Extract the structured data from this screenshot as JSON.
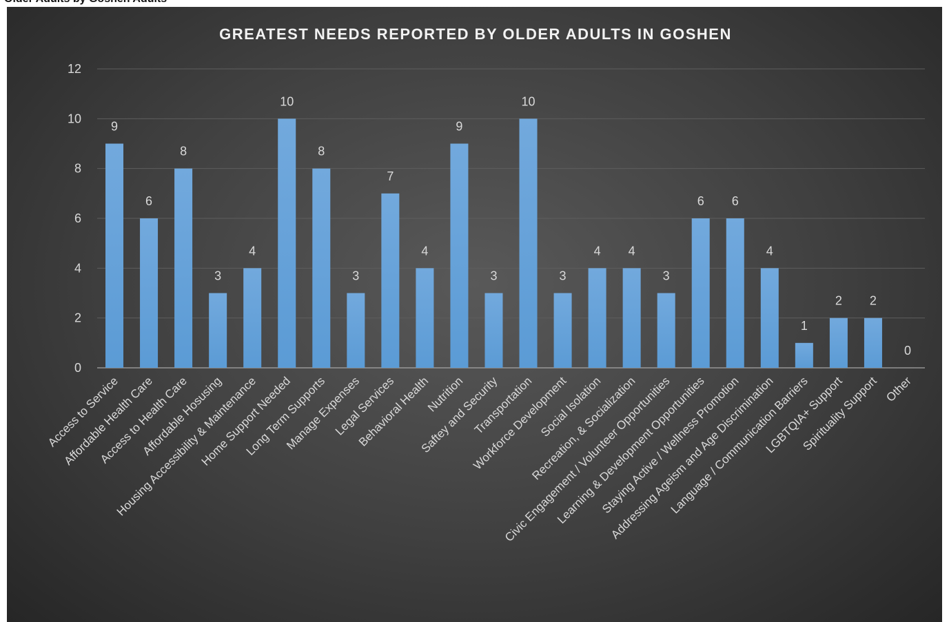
{
  "header_text": "Older Adults by Goshen Adults",
  "chart_data": {
    "type": "bar",
    "title": "GREATEST NEEDS REPORTED BY OLDER ADULTS IN GOSHEN",
    "xlabel": "",
    "ylabel": "",
    "ylim": [
      0,
      12
    ],
    "yticks": [
      0,
      2,
      4,
      6,
      8,
      10,
      12
    ],
    "grid": true,
    "legend": "none",
    "bar_color": "#5b9bd5",
    "categories": [
      "Access to Service",
      "Affordable Health Care",
      "Access to Health Care",
      "Affordable Hosusing",
      "Housing Accessibility & Maintenance",
      "Home Support Needed",
      "Long Term Supports",
      "Manage Expenses",
      "Legal Services",
      "Behavioral Health",
      "Nutrition",
      "Saftey and Security",
      "Transportation",
      "Workforce Development",
      "Social Isolation",
      "Recreation, & Socialization",
      "Civic Engagement / Volunteer Opportunities",
      "Learning & Development Opportunities",
      "Staying Active / Wellness Promotion",
      "Addressing Ageism and Age Discrimination",
      "Language / Communication Barriers",
      "LGBTQIA+ Support",
      "Spirituality Support",
      "Other"
    ],
    "values": [
      9,
      6,
      8,
      3,
      4,
      10,
      8,
      3,
      7,
      4,
      9,
      3,
      10,
      3,
      4,
      4,
      3,
      6,
      6,
      4,
      1,
      2,
      2,
      0
    ]
  }
}
